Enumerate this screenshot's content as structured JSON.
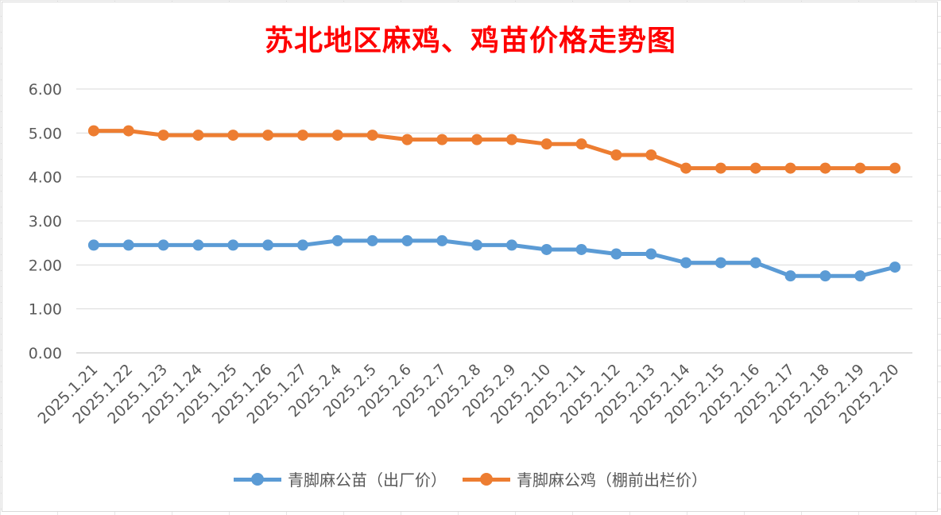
{
  "chart_data": {
    "type": "line",
    "title": "苏北地区麻鸡、鸡苗价格走势图",
    "title_color": "#ff0000",
    "categories": [
      "2025.1.21",
      "2025.1.22",
      "2025.1.23",
      "2025.1.24",
      "2025.1.25",
      "2025.1.26",
      "2025.1.27",
      "2025.2.4",
      "2025.2.5",
      "2025.2.6",
      "2025.2.7",
      "2025.2.8",
      "2025.2.9",
      "2025.2.10",
      "2025.2.11",
      "2025.2.12",
      "2025.2.13",
      "2025.2.14",
      "2025.2.15",
      "2025.2.16",
      "2025.2.17",
      "2025.2.18",
      "2025.2.19",
      "2025.2.20"
    ],
    "y_ticks": [
      "0.00",
      "1.00",
      "2.00",
      "3.00",
      "4.00",
      "5.00",
      "6.00"
    ],
    "ylim": [
      0,
      6
    ],
    "grid": "horizontal",
    "legend_position": "bottom",
    "series": [
      {
        "name": "青脚麻公苗（出厂价）",
        "color": "#5b9bd5",
        "values": [
          2.45,
          2.45,
          2.45,
          2.45,
          2.45,
          2.45,
          2.45,
          2.55,
          2.55,
          2.55,
          2.55,
          2.45,
          2.45,
          2.35,
          2.35,
          2.25,
          2.25,
          2.05,
          2.05,
          2.05,
          1.75,
          1.75,
          1.75,
          1.95
        ]
      },
      {
        "name": "青脚麻公鸡（棚前出栏价）",
        "color": "#ed7d31",
        "values": [
          5.05,
          5.05,
          4.95,
          4.95,
          4.95,
          4.95,
          4.95,
          4.95,
          4.95,
          4.85,
          4.85,
          4.85,
          4.85,
          4.75,
          4.75,
          4.5,
          4.5,
          4.2,
          4.2,
          4.2,
          4.2,
          4.2,
          4.2,
          4.2
        ]
      }
    ]
  }
}
